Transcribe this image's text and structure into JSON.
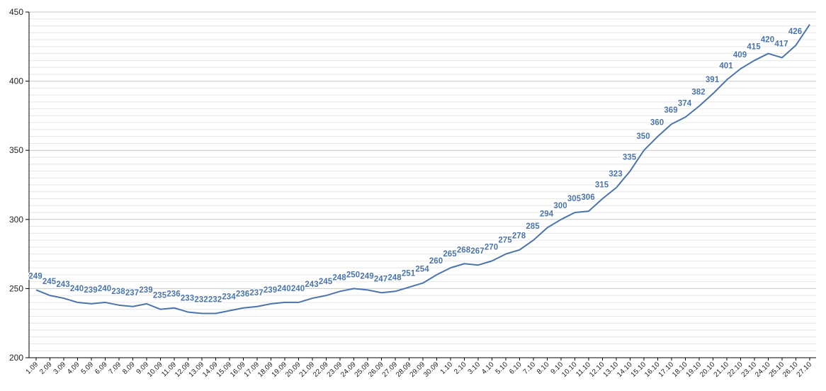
{
  "chart_data": {
    "type": "line",
    "categories": [
      "1.09",
      "2.09",
      "3.09",
      "4.09",
      "5.09",
      "6.09",
      "7.09",
      "8.09",
      "9.09",
      "10.09",
      "11.09",
      "12.09",
      "13.09",
      "14.09",
      "15.09",
      "16.09",
      "17.09",
      "18.09",
      "19.09",
      "20.09",
      "21.09",
      "22.09",
      "23.09",
      "24.09",
      "25.09",
      "26.09",
      "27.09",
      "28.09",
      "29.09",
      "30.09",
      "1.10",
      "2.10",
      "3.10",
      "4.10",
      "5.10",
      "6.10",
      "7.10",
      "8.10",
      "9.10",
      "10.10",
      "11.10",
      "12.10",
      "13.10",
      "14.10",
      "15.10",
      "16.10",
      "17.10",
      "18.10",
      "19.10",
      "20.10",
      "21.10",
      "22.10",
      "23.10",
      "24.10",
      "25.10",
      "26.10",
      "27.10"
    ],
    "series": [
      {
        "values": [
          249,
          245,
          243,
          240,
          239,
          240,
          238,
          237,
          239,
          235,
          236,
          233,
          232,
          232,
          234,
          236,
          237,
          239,
          240,
          240,
          243,
          245,
          248,
          250,
          249,
          247,
          248,
          251,
          254,
          260,
          265,
          268,
          267,
          270,
          275,
          278,
          285,
          294,
          300,
          305,
          306,
          315,
          323,
          335,
          350,
          360,
          369,
          374,
          382,
          391,
          401,
          409,
          415,
          420,
          417,
          426,
          441
        ],
        "color": "#4a74ab"
      }
    ],
    "data_labels": [
      "249",
      "245",
      "243",
      "240",
      "239",
      "240",
      "238",
      "237",
      "239",
      "235",
      "236",
      "233",
      "232",
      "232",
      "234",
      "236",
      "237",
      "239",
      "240",
      "240",
      "243",
      "245",
      "248",
      "250",
      "249",
      "247",
      "248",
      "251",
      "254",
      "260",
      "265",
      "268",
      "267",
      "270",
      "275",
      "278",
      "285",
      "294",
      "300",
      "305",
      "306",
      "315",
      "323",
      "335",
      "350",
      "360",
      "369",
      "374",
      "382",
      "391",
      "401",
      "409",
      "415",
      "420",
      "417",
      "426",
      ""
    ],
    "y_ticks": [
      "200",
      "250",
      "300",
      "350",
      "400",
      "450"
    ],
    "ylim": [
      200,
      450
    ],
    "grid": true,
    "legend": "none"
  }
}
